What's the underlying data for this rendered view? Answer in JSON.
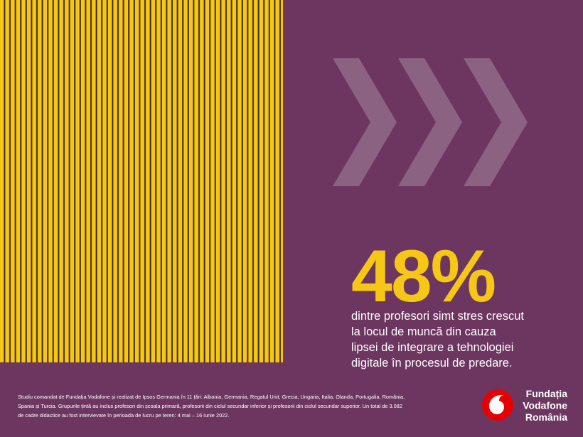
{
  "stat": {
    "value": "48%",
    "description": [
      "dintre profesori simt stres crescut",
      "la locul de muncă din cauza",
      "lipsei de integrare a tehnologiei",
      "digitale în procesul de predare."
    ]
  },
  "footnote": [
    "Studiu comandat de Fundația Vodafone și realizat de Ipsos Germania în 11 țări: Albania, Germania, Regatul Unit, Grecia, Ungaria, Italia, Olanda, Portugalia, România,",
    "Spania și Turcia. Grupurile țintă au inclus profesori din școala primară, profesorii din ciclul secundar inferior și profesorii din ciclul secundar superior. Un total de 3.082",
    "de cadre didactice au fost intervievate în perioada de lucru pe teren: 4 mai – 16 iunie 2022."
  ],
  "logo": {
    "lines": [
      "Fundația",
      "Vodafone",
      "România"
    ]
  }
}
